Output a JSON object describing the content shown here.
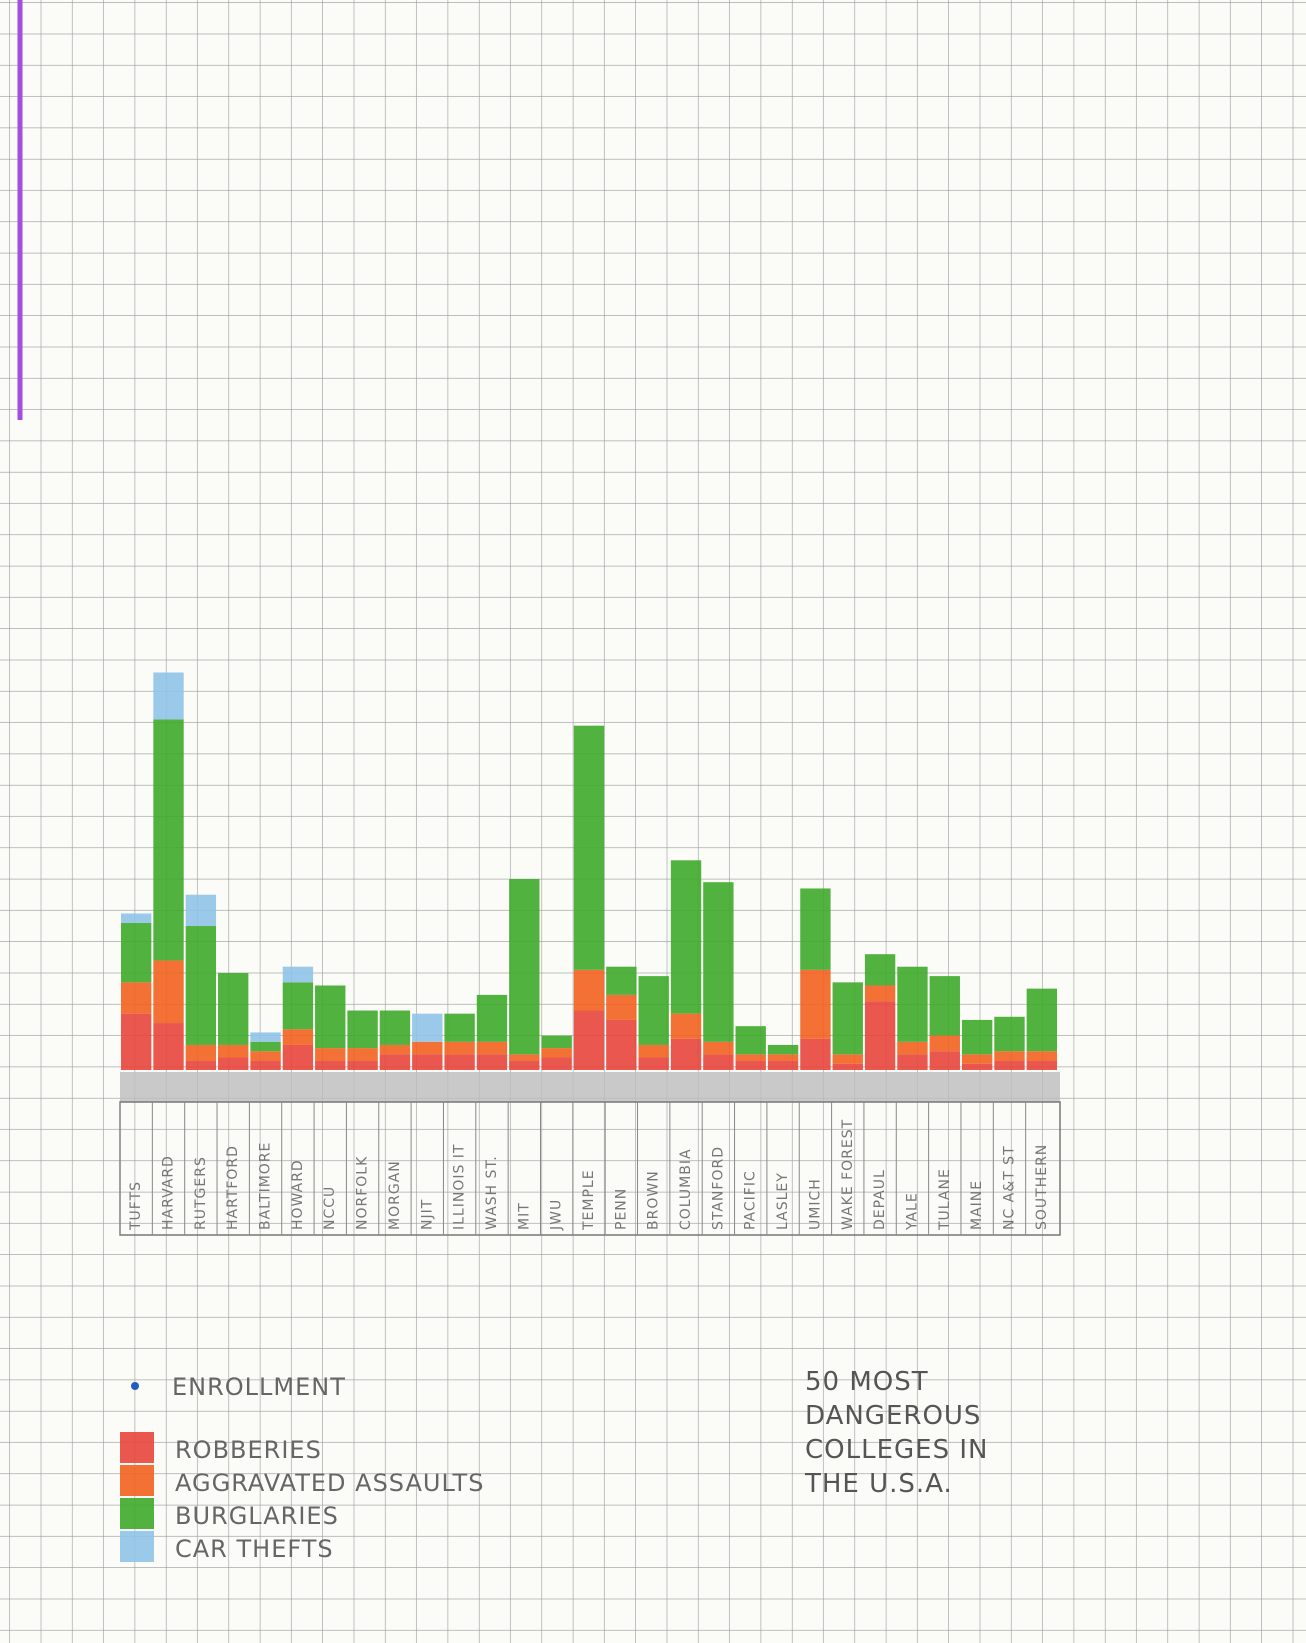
{
  "chart_data": {
    "type": "stacked_bar",
    "title": "50 MOST DANGEROUS COLLEGES IN THE U.S.A.",
    "categories": [
      "TUFTS",
      "HARVARD",
      "RUTGERS",
      "HARTFORD",
      "BALTIMORE",
      "HOWARD",
      "NCCU",
      "NORFOLK",
      "MORGAN",
      "NJIT",
      "ILLINOIS IT",
      "WASH ST.",
      "MIT",
      "JWU",
      "TEMPLE",
      "PENN",
      "BROWN",
      "COLUMBIA",
      "STANFORD",
      "PACIFIC",
      "LASLEY",
      "UMICH",
      "WAKE FOREST",
      "DEPAUL",
      "YALE",
      "TULANE",
      "MAINE",
      "NC A&T ST",
      "SOUTHERN"
    ],
    "series": [
      {
        "name": "ROBBERIES",
        "color": "#e8453c",
        "values": [
          1.8,
          1.5,
          0.3,
          0.4,
          0.3,
          0.8,
          0.3,
          0.3,
          0.5,
          0.5,
          0.5,
          0.5,
          0.3,
          0.4,
          1.9,
          1.6,
          0.4,
          1.0,
          0.5,
          0.3,
          0.3,
          1.0,
          0.2,
          2.2,
          0.5,
          0.6,
          0.2,
          0.3,
          0.3
        ]
      },
      {
        "name": "AGGRAVATED ASSAULTS",
        "color": "#f2621e",
        "values": [
          1.0,
          2.0,
          0.5,
          0.4,
          0.3,
          0.5,
          0.4,
          0.4,
          0.3,
          0.4,
          0.4,
          0.4,
          0.2,
          0.3,
          1.3,
          0.8,
          0.4,
          0.8,
          0.4,
          0.2,
          0.2,
          2.2,
          0.3,
          0.5,
          0.4,
          0.5,
          0.3,
          0.3,
          0.3
        ]
      },
      {
        "name": "BURGLARIES",
        "color": "#3faa2a",
        "values": [
          1.9,
          7.7,
          3.8,
          2.3,
          0.3,
          1.5,
          2.0,
          1.2,
          1.1,
          0,
          0.9,
          1.5,
          5.6,
          0.4,
          7.8,
          0.9,
          2.2,
          4.9,
          5.1,
          0.9,
          0.3,
          2.6,
          2.3,
          1.0,
          2.4,
          1.9,
          1.1,
          1.1,
          2.0
        ]
      },
      {
        "name": "CAR THEFTS",
        "color": "#8fc3e8",
        "values": [
          0.3,
          1.5,
          1.0,
          0,
          0.3,
          0.5,
          0,
          0,
          0,
          0.9,
          0,
          0,
          0,
          0,
          0,
          0,
          0,
          0,
          0,
          0,
          0,
          0,
          0,
          0,
          0,
          0,
          0,
          0,
          0
        ]
      }
    ],
    "markers": [
      {
        "name": "ENROLLMENT",
        "color": "#1f5fbf"
      }
    ]
  }
}
